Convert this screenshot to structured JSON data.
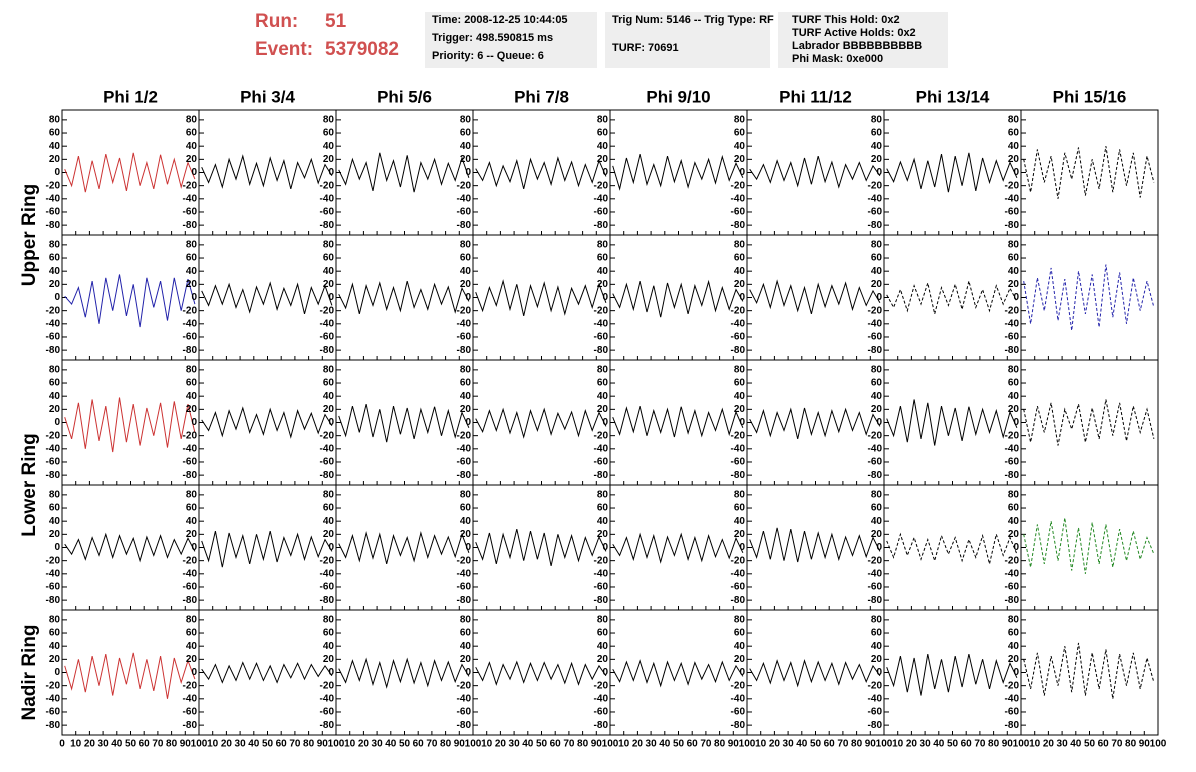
{
  "header": {
    "run_label": "Run:",
    "run": "51",
    "event_label": "Event:",
    "event": "5379082",
    "boxes": [
      [
        "Time: 2008-12-25 10:44:05",
        "Trigger: 498.590815 ms",
        "Priority: 6 -- Queue: 6"
      ],
      [
        "Trig Num: 5146 -- Trig Type: RF",
        "TURF: 70691"
      ],
      [
        "TURF This Hold: 0x2",
        "TURF Active Holds: 0x2",
        "Labrador BBBBBBBBBB",
        "Phi Mask: 0xe000"
      ]
    ]
  },
  "chart_data": {
    "type": "line",
    "column_titles": [
      "Phi 1/2",
      "Phi 3/4",
      "Phi 5/6",
      "Phi 7/8",
      "Phi 9/10",
      "Phi 11/12",
      "Phi 13/14",
      "Phi 15/16"
    ],
    "row_labels": [
      "Upper Ring",
      "Lower Ring",
      "Nadir Ring"
    ],
    "x": [
      2,
      7,
      12,
      17,
      22,
      27,
      32,
      37,
      42,
      47,
      52,
      57,
      62,
      67,
      72,
      77,
      82,
      87,
      92,
      97
    ],
    "xlim": [
      0,
      100
    ],
    "ylim": [
      -95,
      95
    ],
    "xticks": [
      0,
      10,
      20,
      30,
      40,
      50,
      60,
      70,
      80,
      90,
      100
    ],
    "yticks": [
      -80,
      -60,
      -40,
      -20,
      0,
      20,
      40,
      60,
      80
    ],
    "series": [
      {
        "color": "#cc3333",
        "style": "solid",
        "values": [
          5,
          -20,
          25,
          -30,
          18,
          -25,
          28,
          -15,
          22,
          -28,
          30,
          -20,
          15,
          -25,
          27,
          -18,
          20,
          -22,
          15,
          -10
        ]
      },
      {
        "color": "#000000",
        "style": "solid",
        "values": [
          8,
          -15,
          12,
          -22,
          20,
          -10,
          25,
          -18,
          14,
          -20,
          22,
          -12,
          18,
          -25,
          15,
          -8,
          20,
          -16,
          12,
          -5
        ]
      },
      {
        "color": "#000000",
        "style": "solid",
        "values": [
          4,
          -18,
          20,
          -10,
          15,
          -28,
          30,
          -12,
          18,
          -22,
          26,
          -30,
          15,
          -10,
          20,
          -18,
          14,
          -12,
          22,
          -8
        ]
      },
      {
        "color": "#000000",
        "style": "solid",
        "values": [
          6,
          -12,
          15,
          -20,
          10,
          -14,
          18,
          -25,
          20,
          -10,
          15,
          -18,
          22,
          -12,
          16,
          -20,
          12,
          -15,
          18,
          -6
        ]
      },
      {
        "color": "#000000",
        "style": "solid",
        "values": [
          10,
          -25,
          22,
          -15,
          28,
          -18,
          12,
          -20,
          25,
          -14,
          18,
          -22,
          15,
          -10,
          20,
          -16,
          24,
          -12,
          14,
          -8
        ]
      },
      {
        "color": "#000000",
        "style": "solid",
        "values": [
          5,
          -10,
          12,
          -15,
          18,
          -12,
          15,
          -20,
          22,
          -18,
          25,
          -14,
          16,
          -22,
          12,
          -10,
          15,
          -12,
          10,
          -5
        ]
      },
      {
        "color": "#000000",
        "style": "solid",
        "values": [
          6,
          -14,
          16,
          -12,
          20,
          -25,
          18,
          -22,
          28,
          -30,
          25,
          -20,
          30,
          -28,
          22,
          -15,
          18,
          -12,
          15,
          -8
        ]
      },
      {
        "color": "#000000",
        "style": "dashed",
        "values": [
          20,
          -30,
          35,
          -15,
          25,
          -40,
          30,
          -10,
          38,
          -35,
          20,
          -25,
          40,
          -30,
          35,
          -20,
          30,
          -38,
          25,
          -15
        ]
      },
      {
        "color": "#2222aa",
        "style": "solid",
        "values": [
          2,
          -10,
          15,
          -30,
          25,
          -40,
          30,
          -20,
          35,
          -28,
          20,
          -45,
          30,
          -15,
          25,
          -35,
          30,
          -20,
          28,
          -10
        ]
      },
      {
        "color": "#000000",
        "style": "solid",
        "values": [
          10,
          -12,
          18,
          -10,
          20,
          -15,
          12,
          -22,
          16,
          -10,
          22,
          -18,
          14,
          -12,
          20,
          -25,
          15,
          -10,
          18,
          -12
        ]
      },
      {
        "color": "#000000",
        "style": "solid",
        "values": [
          5,
          -16,
          20,
          -25,
          18,
          -12,
          22,
          -18,
          15,
          -20,
          25,
          -15,
          12,
          -18,
          20,
          -10,
          16,
          -22,
          14,
          -6
        ]
      },
      {
        "color": "#000000",
        "style": "solid",
        "values": [
          8,
          -20,
          15,
          -12,
          25,
          -18,
          20,
          -28,
          18,
          -14,
          22,
          -20,
          16,
          -25,
          14,
          -10,
          18,
          -15,
          20,
          -8
        ]
      },
      {
        "color": "#000000",
        "style": "solid",
        "values": [
          6,
          -15,
          20,
          -18,
          25,
          -22,
          18,
          -30,
          22,
          -15,
          20,
          -25,
          18,
          -12,
          24,
          -20,
          15,
          -18,
          12,
          -6
        ]
      },
      {
        "color": "#000000",
        "style": "solid",
        "values": [
          12,
          -8,
          20,
          -15,
          25,
          -12,
          18,
          -20,
          15,
          -25,
          20,
          -14,
          18,
          -10,
          22,
          -18,
          15,
          -12,
          10,
          -8
        ]
      },
      {
        "color": "#000000",
        "style": "dashed",
        "values": [
          4,
          -15,
          12,
          -20,
          18,
          -10,
          22,
          -25,
          15,
          -12,
          20,
          -18,
          25,
          -15,
          12,
          -20,
          18,
          -10,
          14,
          -6
        ]
      },
      {
        "color": "#2222aa",
        "style": "dashed",
        "values": [
          25,
          -40,
          30,
          -20,
          45,
          -35,
          28,
          -50,
          40,
          -25,
          35,
          -45,
          50,
          -30,
          38,
          -40,
          30,
          -20,
          25,
          -15
        ]
      },
      {
        "color": "#cc3333",
        "style": "solid",
        "values": [
          8,
          -25,
          30,
          -40,
          35,
          -28,
          25,
          -45,
          38,
          -30,
          28,
          -35,
          22,
          -20,
          30,
          -38,
          32,
          -25,
          28,
          -15
        ]
      },
      {
        "color": "#000000",
        "style": "solid",
        "values": [
          4,
          -12,
          15,
          -20,
          18,
          -10,
          22,
          -15,
          12,
          -18,
          20,
          -12,
          15,
          -22,
          18,
          -10,
          14,
          -16,
          12,
          -5
        ]
      },
      {
        "color": "#000000",
        "style": "solid",
        "values": [
          10,
          -20,
          25,
          -15,
          28,
          -22,
          20,
          -30,
          25,
          -18,
          22,
          -25,
          20,
          -15,
          24,
          -20,
          18,
          -22,
          15,
          -8
        ]
      },
      {
        "color": "#000000",
        "style": "solid",
        "values": [
          6,
          -14,
          18,
          -12,
          20,
          -16,
          15,
          -22,
          18,
          -12,
          20,
          -18,
          14,
          -10,
          16,
          -20,
          18,
          -12,
          15,
          -6
        ]
      },
      {
        "color": "#000000",
        "style": "solid",
        "values": [
          8,
          -18,
          22,
          -14,
          25,
          -20,
          18,
          -15,
          20,
          -22,
          24,
          -16,
          18,
          -20,
          15,
          -12,
          20,
          -18,
          16,
          -8
        ]
      },
      {
        "color": "#000000",
        "style": "solid",
        "values": [
          5,
          -15,
          18,
          -20,
          15,
          -12,
          20,
          -25,
          22,
          -18,
          15,
          -20,
          18,
          -14,
          20,
          -12,
          15,
          -18,
          12,
          -6
        ]
      },
      {
        "color": "#000000",
        "style": "solid",
        "values": [
          6,
          -20,
          25,
          -30,
          35,
          -25,
          30,
          -35,
          25,
          -20,
          22,
          -28,
          24,
          -18,
          20,
          -15,
          18,
          -22,
          16,
          -8
        ]
      },
      {
        "color": "#000000",
        "style": "dashed",
        "values": [
          20,
          -30,
          25,
          -15,
          30,
          -35,
          20,
          -10,
          28,
          -30,
          22,
          -25,
          35,
          -20,
          30,
          -28,
          25,
          -15,
          20,
          -25
        ]
      },
      {
        "color": "#000000",
        "style": "solid",
        "values": [
          5,
          -10,
          12,
          -18,
          15,
          -12,
          20,
          -15,
          18,
          -10,
          14,
          -20,
          16,
          -12,
          18,
          -15,
          12,
          -10,
          14,
          -6
        ]
      },
      {
        "color": "#000000",
        "style": "solid",
        "values": [
          10,
          -20,
          25,
          -30,
          22,
          -15,
          18,
          -25,
          20,
          -18,
          25,
          -22,
          15,
          -12,
          20,
          -18,
          16,
          -14,
          12,
          -6
        ]
      },
      {
        "color": "#000000",
        "style": "solid",
        "values": [
          6,
          -15,
          18,
          -20,
          22,
          -16,
          20,
          -25,
          18,
          -12,
          15,
          -20,
          22,
          -15,
          18,
          -10,
          16,
          -14,
          20,
          -8
        ]
      },
      {
        "color": "#000000",
        "style": "solid",
        "values": [
          8,
          -18,
          22,
          -25,
          20,
          -15,
          28,
          -20,
          25,
          -18,
          22,
          -28,
          20,
          -15,
          18,
          -20,
          15,
          -12,
          16,
          -6
        ]
      },
      {
        "color": "#000000",
        "style": "solid",
        "values": [
          5,
          -12,
          15,
          -18,
          20,
          -15,
          18,
          -22,
          16,
          -12,
          20,
          -18,
          15,
          -20,
          18,
          -14,
          12,
          -16,
          14,
          -8
        ]
      },
      {
        "color": "#000000",
        "style": "solid",
        "values": [
          12,
          -15,
          25,
          -18,
          30,
          -20,
          28,
          -22,
          25,
          -18,
          22,
          -15,
          20,
          -18,
          16,
          -12,
          18,
          -14,
          15,
          -6
        ]
      },
      {
        "color": "#000000",
        "style": "dashed",
        "values": [
          10,
          -15,
          20,
          -12,
          15,
          -18,
          12,
          -20,
          18,
          -10,
          15,
          -20,
          12,
          -15,
          18,
          -25,
          20,
          -12,
          15,
          -10
        ]
      },
      {
        "color": "#228822",
        "style": "dashed",
        "values": [
          20,
          -30,
          35,
          -25,
          40,
          -20,
          45,
          -35,
          30,
          -40,
          38,
          -25,
          35,
          -30,
          28,
          -20,
          25,
          -18,
          15,
          -10
        ]
      },
      {
        "color": "#cc3333",
        "style": "solid",
        "values": [
          10,
          -25,
          20,
          -30,
          25,
          -20,
          28,
          -35,
          22,
          -18,
          30,
          -25,
          20,
          -28,
          25,
          -40,
          22,
          -15,
          18,
          -10
        ]
      },
      {
        "color": "#000000",
        "style": "solid",
        "values": [
          5,
          -10,
          12,
          -15,
          10,
          -12,
          15,
          -10,
          14,
          -12,
          10,
          -15,
          12,
          -8,
          14,
          -10,
          12,
          -6,
          10,
          -5
        ]
      },
      {
        "color": "#000000",
        "style": "solid",
        "values": [
          6,
          -15,
          18,
          -12,
          20,
          -18,
          15,
          -22,
          18,
          -14,
          20,
          -16,
          15,
          -20,
          18,
          -12,
          16,
          -14,
          12,
          -6
        ]
      },
      {
        "color": "#000000",
        "style": "solid",
        "values": [
          8,
          -12,
          15,
          -18,
          12,
          -10,
          16,
          -15,
          14,
          -12,
          15,
          -10,
          12,
          -16,
          14,
          -18,
          12,
          -10,
          10,
          -5
        ]
      },
      {
        "color": "#000000",
        "style": "solid",
        "values": [
          5,
          -14,
          16,
          -12,
          18,
          -15,
          14,
          -20,
          16,
          -12,
          14,
          -18,
          15,
          -10,
          12,
          -14,
          16,
          -12,
          10,
          -6
        ]
      },
      {
        "color": "#000000",
        "style": "solid",
        "values": [
          6,
          -12,
          14,
          -16,
          18,
          -12,
          15,
          -20,
          18,
          -14,
          16,
          -12,
          14,
          -18,
          15,
          -10,
          12,
          -14,
          10,
          -5
        ]
      },
      {
        "color": "#000000",
        "style": "solid",
        "values": [
          8,
          -20,
          25,
          -30,
          22,
          -35,
          28,
          -25,
          20,
          -30,
          25,
          -22,
          28,
          -18,
          20,
          -25,
          18,
          -15,
          14,
          -8
        ]
      },
      {
        "color": "#000000",
        "style": "dashed",
        "values": [
          20,
          -25,
          30,
          -35,
          25,
          -20,
          40,
          -30,
          45,
          -35,
          30,
          -25,
          35,
          -40,
          28,
          -20,
          30,
          -25,
          22,
          -15
        ]
      }
    ]
  }
}
